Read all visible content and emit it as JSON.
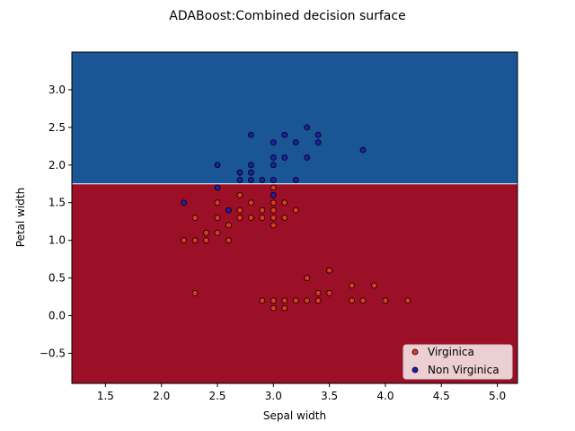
{
  "chart_data": {
    "type": "scatter",
    "title": "ADABoost:Combined decision surface",
    "xlabel": "Sepal width",
    "ylabel": "Petal width",
    "xlim": [
      1.2,
      5.18
    ],
    "ylim": [
      -0.9,
      3.5
    ],
    "xticks": [
      "1.5",
      "2.0",
      "2.5",
      "3.0",
      "3.5",
      "4.0",
      "4.5",
      "5.0"
    ],
    "xtick_values": [
      1.5,
      2.0,
      2.5,
      3.0,
      3.5,
      4.0,
      4.5,
      5.0
    ],
    "yticks": [
      "−0.5",
      "0.0",
      "0.5",
      "1.0",
      "1.5",
      "2.0",
      "2.5",
      "3.0"
    ],
    "ytick_values": [
      -0.5,
      0.0,
      0.5,
      1.0,
      1.5,
      2.0,
      2.5,
      3.0
    ],
    "decision_boundary_y": 1.75,
    "regions": [
      {
        "name": "upper",
        "color": "#1a5696",
        "y_range": [
          1.75,
          3.5
        ]
      },
      {
        "name": "lower",
        "color": "#9b1027",
        "y_range": [
          -0.9,
          1.75
        ]
      }
    ],
    "legend_position": "lower-right",
    "series": [
      {
        "name": "Virginica",
        "color": "#e0391d",
        "points": [
          [
            2.2,
            1.0
          ],
          [
            2.3,
            1.0
          ],
          [
            2.4,
            1.0
          ],
          [
            2.4,
            1.1
          ],
          [
            2.5,
            1.1
          ],
          [
            2.6,
            1.0
          ],
          [
            2.3,
            1.3
          ],
          [
            2.5,
            1.3
          ],
          [
            2.6,
            1.2
          ],
          [
            2.7,
            1.3
          ],
          [
            2.8,
            1.3
          ],
          [
            2.9,
            1.3
          ],
          [
            3.0,
            1.3
          ],
          [
            3.0,
            1.2
          ],
          [
            3.1,
            1.3
          ],
          [
            3.0,
            1.4
          ],
          [
            3.1,
            1.5
          ],
          [
            3.2,
            1.4
          ],
          [
            2.9,
            1.4
          ],
          [
            2.7,
            1.4
          ],
          [
            2.8,
            1.5
          ],
          [
            3.0,
            1.5
          ],
          [
            2.5,
            1.5
          ],
          [
            2.7,
            1.6
          ],
          [
            3.0,
            1.7
          ],
          [
            2.3,
            0.3
          ],
          [
            2.9,
            0.2
          ],
          [
            3.0,
            0.2
          ],
          [
            3.0,
            0.1
          ],
          [
            3.1,
            0.1
          ],
          [
            3.1,
            0.2
          ],
          [
            3.2,
            0.2
          ],
          [
            3.3,
            0.2
          ],
          [
            3.4,
            0.2
          ],
          [
            3.4,
            0.3
          ],
          [
            3.5,
            0.3
          ],
          [
            3.3,
            0.5
          ],
          [
            3.5,
            0.6
          ],
          [
            3.7,
            0.4
          ],
          [
            3.7,
            0.2
          ],
          [
            3.8,
            0.2
          ],
          [
            3.9,
            0.4
          ],
          [
            4.0,
            0.2
          ],
          [
            4.2,
            0.2
          ]
        ]
      },
      {
        "name": "Non Virginica",
        "color": "#1f1fa8",
        "points": [
          [
            2.2,
            1.5
          ],
          [
            2.5,
            1.7
          ],
          [
            2.6,
            1.4
          ],
          [
            2.5,
            2.0
          ],
          [
            2.7,
            1.8
          ],
          [
            2.7,
            1.9
          ],
          [
            2.8,
            1.8
          ],
          [
            2.8,
            1.9
          ],
          [
            2.8,
            2.0
          ],
          [
            2.8,
            2.4
          ],
          [
            2.9,
            1.8
          ],
          [
            3.0,
            1.8
          ],
          [
            3.0,
            1.6
          ],
          [
            3.0,
            2.0
          ],
          [
            3.0,
            2.1
          ],
          [
            3.0,
            2.3
          ],
          [
            3.1,
            2.1
          ],
          [
            3.1,
            2.4
          ],
          [
            3.2,
            1.8
          ],
          [
            3.2,
            2.3
          ],
          [
            3.3,
            2.1
          ],
          [
            3.3,
            2.5
          ],
          [
            3.4,
            2.3
          ],
          [
            3.4,
            2.4
          ],
          [
            3.8,
            2.2
          ]
        ]
      }
    ]
  }
}
